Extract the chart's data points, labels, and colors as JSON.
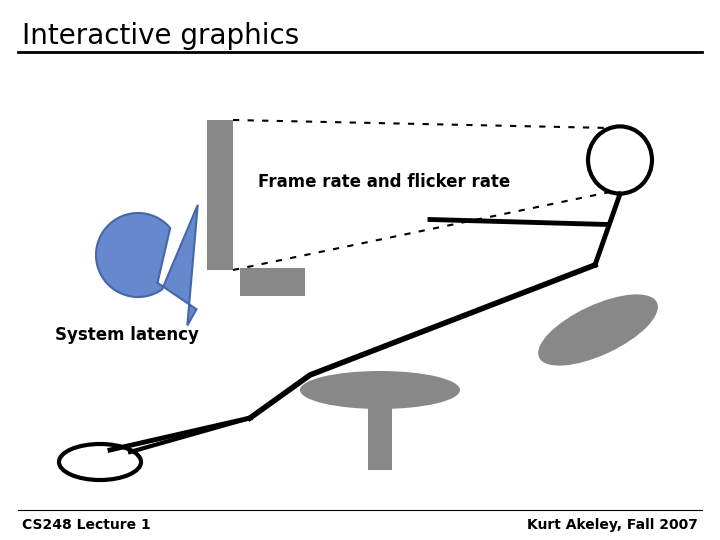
{
  "title": "Interactive graphics",
  "subtitle_frame": "Frame rate and flicker rate",
  "subtitle_latency": "System latency",
  "footer_left": "CS248 Lecture 1",
  "footer_right": "Kurt Akeley, Fall 2007",
  "bg_color": "#ffffff",
  "gray_color": "#888888",
  "blue_color": "#6688cc",
  "black_color": "#000000",
  "title_fontsize": 20,
  "label_fontsize": 12,
  "footer_fontsize": 10
}
